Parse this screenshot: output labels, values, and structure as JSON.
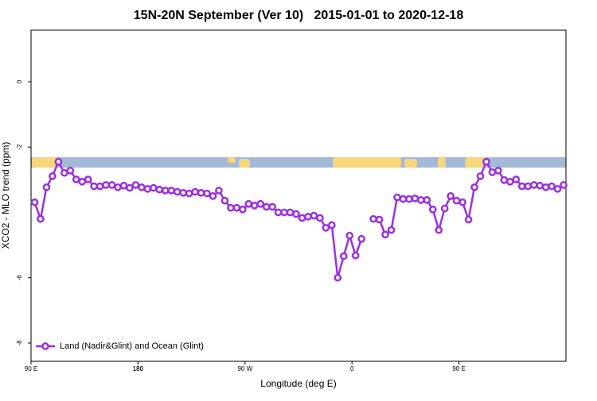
{
  "chart_data": {
    "type": "line",
    "title": "15N-20N September (Ver 10)   2015-01-01 to 2020-12-18",
    "x_label": "Longitude (deg E)",
    "y_label": "XCO2 - MLO trend (ppm)",
    "x": [
      93,
      98,
      103,
      108,
      113,
      118,
      123,
      128,
      133,
      138,
      143,
      148,
      153,
      158,
      163,
      168,
      173,
      178,
      183,
      188,
      193,
      198,
      203,
      208,
      213,
      218,
      223,
      228,
      233,
      238,
      243,
      248,
      253,
      258,
      263,
      268,
      273,
      278,
      283,
      288,
      293,
      298,
      303,
      308,
      313,
      318,
      323,
      328,
      333,
      338,
      343,
      348,
      353,
      358,
      363,
      368,
      373,
      378,
      383,
      388,
      393,
      398,
      403,
      408,
      413,
      418,
      423,
      428,
      433,
      438,
      443,
      448,
      453,
      458,
      463,
      468,
      473,
      478,
      483,
      488,
      493,
      498,
      503,
      508,
      513,
      518,
      523,
      528,
      533,
      538
    ],
    "series": [
      {
        "name": "Land (Nadir&Glint) and Ocean (Glint)",
        "color": "#9b30e0",
        "values": [
          -3.69,
          -4.2,
          -3.23,
          -2.89,
          -2.45,
          -2.79,
          -2.72,
          -2.99,
          -3.06,
          -2.99,
          -3.2,
          -3.2,
          -3.16,
          -3.16,
          -3.23,
          -3.18,
          -3.25,
          -3.16,
          -3.23,
          -3.28,
          -3.25,
          -3.3,
          -3.33,
          -3.33,
          -3.37,
          -3.4,
          -3.42,
          -3.37,
          -3.4,
          -3.42,
          -3.5,
          -3.33,
          -3.64,
          -3.86,
          -3.86,
          -3.91,
          -3.74,
          -3.79,
          -3.74,
          -3.83,
          -3.83,
          -4.0,
          -4.0,
          -4.0,
          -4.05,
          -4.17,
          -4.13,
          -4.1,
          -4.17,
          -4.47,
          -4.39,
          -6.0,
          -5.34,
          -4.71,
          -5.32,
          -4.81,
          null,
          -4.2,
          -4.22,
          -4.68,
          -4.54,
          -3.54,
          -3.59,
          -3.59,
          -3.57,
          -3.62,
          -3.62,
          -3.91,
          -4.54,
          -3.88,
          -3.5,
          -3.64,
          -3.69,
          -4.22,
          -3.23,
          -2.89,
          -2.45,
          -2.77,
          -2.72,
          -3.01,
          -3.06,
          -2.99,
          -3.2,
          -3.2,
          -3.16,
          -3.18,
          -3.23,
          -3.2,
          -3.28,
          -3.16
        ]
      }
    ],
    "xlim": [
      90,
      540
    ],
    "xticks": [
      {
        "value": 90,
        "label": "90 E"
      },
      180,
      {
        "value": 270,
        "label": "90 W"
      },
      {
        "value": 360,
        "label": "0"
      },
      {
        "value": 450,
        "label": "90 E"
      },
      180.0001
    ],
    "ylim": [
      -8.56,
      1.58
    ],
    "yticks": [
      0,
      -2,
      -6,
      -8
    ],
    "legend": "bottom-left"
  }
}
